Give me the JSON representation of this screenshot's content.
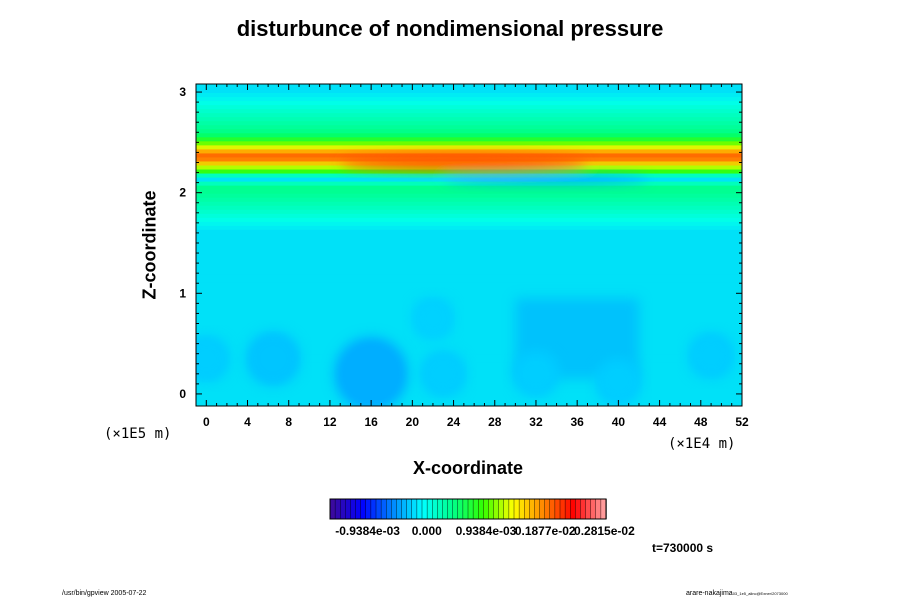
{
  "chart_data": {
    "type": "heatmap",
    "title": "disturbunce of nondimensional pressure",
    "xlabel": "X-coordinate",
    "ylabel": "Z-coordinate",
    "x_unit": "(×1E4 m)",
    "y_unit": "(×1E5 m)",
    "xlim": [
      -1,
      52
    ],
    "ylim": [
      -0.12,
      3.08
    ],
    "x_ticks": [
      "0",
      "4",
      "8",
      "12",
      "16",
      "20",
      "24",
      "28",
      "32",
      "36",
      "40",
      "44",
      "48",
      "52"
    ],
    "y_ticks": [
      "0",
      "1",
      "2",
      "3"
    ],
    "colorbar": {
      "labels": [
        "-0.9384e-03",
        "0.000",
        "0.9384e-03",
        "0.1877e-02",
        "0.2815e-02"
      ],
      "colors": [
        "#3a0aa0",
        "#0000ff",
        "#0088ff",
        "#00ffff",
        "#00ff88",
        "#33ff00",
        "#ffff00",
        "#ff8800",
        "#ff0000",
        "#ff9a9a"
      ]
    },
    "field_description_values": {
      "background_level": -0.0002,
      "band_upper_center_z": 2.35,
      "band_upper_peak": 0.0028,
      "band_lower_center_z": 2.13,
      "band_lower_min": -0.0007,
      "upper_green_region_z": [
        1.6,
        3.0
      ],
      "low_center": {
        "x": 16,
        "z": 0.2,
        "value": -0.0014
      }
    },
    "lows": [
      {
        "x": 16,
        "z": 0.2,
        "value": -0.0014
      },
      {
        "x": 6.5,
        "z": 0.35,
        "value": -0.0009
      },
      {
        "x": 0,
        "z": 0.35,
        "value": -0.0007
      },
      {
        "x": 23,
        "z": 0.2,
        "value": -0.0007
      },
      {
        "x": 32,
        "z": 0.2,
        "value": -0.0007
      },
      {
        "x": 40,
        "z": 0.12,
        "value": -0.0007
      },
      {
        "x": 49,
        "z": 0.38,
        "value": -0.0007
      },
      {
        "x": 22,
        "z": 0.75,
        "value": -0.0006
      }
    ],
    "time_label": "t=730000 s"
  },
  "footer": {
    "left": "/usr/bin/gpview 2005-07-22",
    "right_name": "arare-nakajima",
    "right_tail": "03_1e5_alinc@Exner/2073000"
  }
}
